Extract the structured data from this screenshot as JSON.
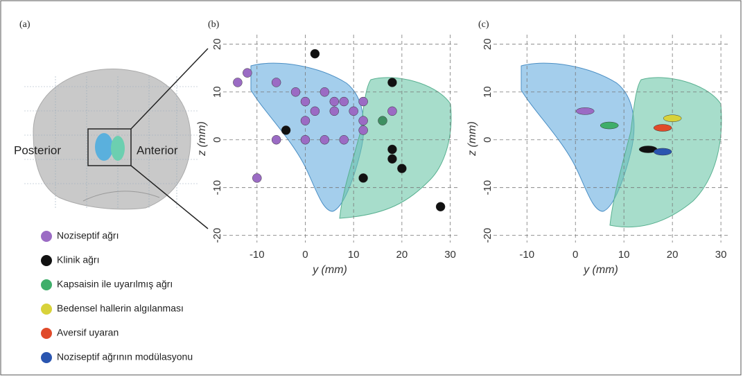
{
  "panel_a": {
    "label": "(a)",
    "posterior": "Posterior",
    "anterior": "Anterior"
  },
  "chart_data": [
    {
      "type": "scatter",
      "panel_label": "(b)",
      "marker": "sphere",
      "x_label": "y (mm)",
      "y_label": "z (mm)",
      "xlim": [
        -17,
        31.5
      ],
      "ylim": [
        -21.5,
        22
      ],
      "xticks": [
        -10,
        0,
        10,
        20,
        30
      ],
      "yticks": [
        -20,
        -10,
        0,
        10,
        20
      ],
      "grid": true,
      "series": [
        {
          "color": "#9b6bc4",
          "x": [
            -12,
            -14,
            -6,
            -2,
            0,
            4,
            2,
            0,
            6,
            8,
            6,
            10,
            12,
            12,
            12,
            18,
            -6,
            0,
            4,
            8,
            -10
          ],
          "values": [
            14,
            12,
            12,
            10,
            8,
            10,
            6,
            4,
            8,
            8,
            6,
            6,
            8,
            4,
            2,
            6,
            0,
            0,
            0,
            0,
            -8
          ]
        },
        {
          "color": "#111111",
          "x": [
            2,
            -4,
            18,
            18,
            18,
            20,
            12,
            28
          ],
          "values": [
            18,
            2,
            12,
            -2,
            -4,
            -6,
            -8,
            -14
          ]
        },
        {
          "color": "#3f8f62",
          "x": [
            16
          ],
          "values": [
            4
          ]
        }
      ]
    },
    {
      "type": "scatter",
      "panel_label": "(c)",
      "marker": "ellipse",
      "x_label": "y (mm)",
      "y_label": "z (mm)",
      "xlim": [
        -16.9,
        31.7
      ],
      "ylim": [
        -21.5,
        22
      ],
      "xticks": [
        -10,
        0,
        10,
        20,
        30
      ],
      "yticks": [
        -20,
        -10,
        0,
        10,
        20
      ],
      "grid": true,
      "series": [
        {
          "name": "Noziseptif ağrı",
          "color": "#9b6bc4",
          "x": [
            2
          ],
          "values": [
            6
          ]
        },
        {
          "name": "Klinik ağrı",
          "color": "#111111",
          "x": [
            15
          ],
          "values": [
            -2
          ]
        },
        {
          "name": "Kapsaisin ile uyarılmış ağrı",
          "color": "#3fae6a",
          "x": [
            7
          ],
          "values": [
            3
          ]
        },
        {
          "name": "Bedensel hallerin algılanması",
          "color": "#d8d23a",
          "x": [
            20
          ],
          "values": [
            4.5
          ]
        },
        {
          "name": "Aversif uyaran",
          "color": "#e04a2a",
          "x": [
            18
          ],
          "values": [
            2.5
          ]
        },
        {
          "name": "Noziseptif ağrının modülasyonu",
          "color": "#2a55b0",
          "x": [
            18
          ],
          "values": [
            -2.5
          ]
        }
      ]
    }
  ]
}
